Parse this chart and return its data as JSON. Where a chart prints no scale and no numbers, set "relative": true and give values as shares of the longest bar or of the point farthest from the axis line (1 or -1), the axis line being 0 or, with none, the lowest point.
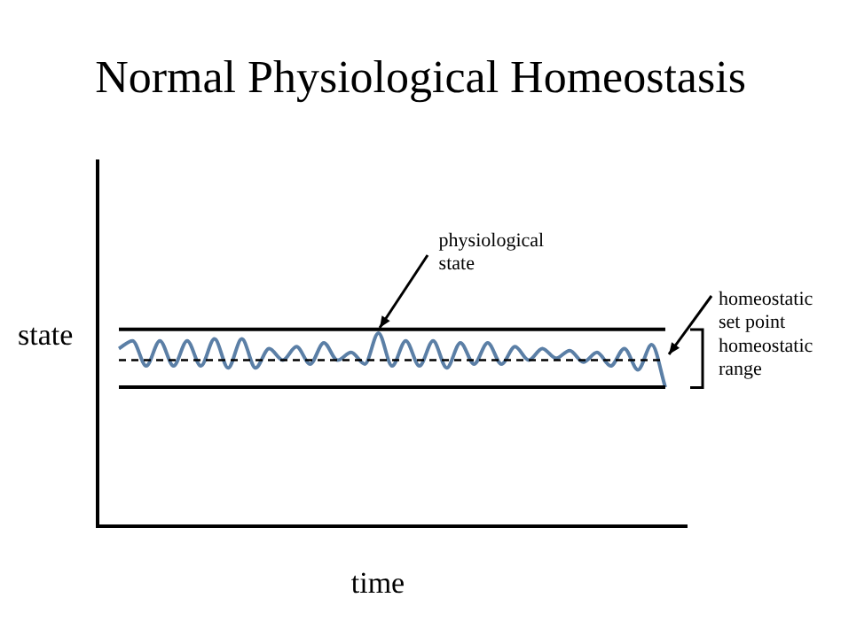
{
  "chart_data": {
    "type": "line",
    "title": "Normal Physiological Homeostasis",
    "xlabel": "time",
    "ylabel": "state",
    "relative": true,
    "categories": [
      null,
      null,
      null,
      null,
      null,
      null,
      null,
      null,
      null,
      null,
      null,
      null,
      null,
      null,
      null,
      null,
      null,
      null,
      null,
      null,
      null,
      null,
      null,
      null,
      null,
      null,
      null,
      null,
      null,
      null,
      null,
      null,
      null,
      null,
      null,
      null,
      null,
      null,
      null,
      null,
      null
    ],
    "series": [
      {
        "color": "#5b7fa6",
        "values": [
          0.92,
          0.96,
          0.83,
          0.96,
          0.83,
          0.96,
          0.83,
          0.97,
          0.82,
          0.97,
          0.82,
          0.92,
          0.86,
          0.93,
          0.84,
          0.95,
          0.86,
          0.9,
          0.84,
          1.0,
          0.83,
          0.96,
          0.83,
          0.96,
          0.82,
          0.95,
          0.84,
          0.95,
          0.84,
          0.93,
          0.86,
          0.92,
          0.87,
          0.91,
          0.85,
          0.9,
          0.83,
          0.92,
          0.81,
          0.94,
          0.72
        ]
      }
    ],
    "ref_lines": [
      {
        "axis": "y",
        "value": 1.02,
        "color": "#000000",
        "line_style": "solid"
      },
      {
        "axis": "y",
        "value": 0.86,
        "label": "homeostatic set point",
        "color": "#000000",
        "line_style": "dashed"
      },
      {
        "axis": "y",
        "value": 0.72,
        "color": "#000000",
        "line_style": "solid"
      }
    ],
    "annotations": [
      "physiological state",
      "homeostatic range"
    ],
    "grid": false,
    "legend": false,
    "marker": "none",
    "line_style": "solid"
  }
}
